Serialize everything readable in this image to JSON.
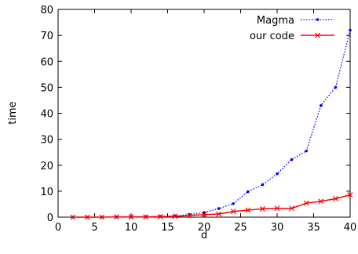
{
  "chart_data": {
    "type": "line",
    "xlabel": "d",
    "ylabel": "time",
    "xlim": [
      0,
      40
    ],
    "ylim": [
      0,
      80
    ],
    "xticks": [
      0,
      5,
      10,
      15,
      20,
      25,
      30,
      35,
      40
    ],
    "yticks": [
      0,
      10,
      20,
      30,
      40,
      50,
      60,
      70,
      80
    ],
    "grid": false,
    "legend_position": "top-right",
    "series": [
      {
        "name": "Magma",
        "color": "#0000ff",
        "line_style": "dotted",
        "marker": "dot",
        "x": [
          2,
          4,
          6,
          8,
          10,
          12,
          14,
          16,
          18,
          20,
          22,
          24,
          26,
          28,
          30,
          32,
          34,
          36,
          38,
          40
        ],
        "y": [
          0.0,
          0.0,
          0.0,
          0.1,
          0.1,
          0.2,
          0.3,
          0.5,
          1.0,
          1.8,
          3.3,
          5.2,
          9.8,
          12.5,
          16.7,
          22.2,
          25.5,
          43.0,
          50.0,
          72.0
        ]
      },
      {
        "name": "our code",
        "color": "#ff0000",
        "line_style": "solid",
        "marker": "x",
        "x": [
          2,
          4,
          6,
          8,
          10,
          12,
          14,
          16,
          18,
          20,
          22,
          24,
          26,
          28,
          30,
          32,
          34,
          36,
          38,
          40
        ],
        "y": [
          0.0,
          0.0,
          0.0,
          0.1,
          0.1,
          0.1,
          0.2,
          0.3,
          0.6,
          1.0,
          1.2,
          2.2,
          2.7,
          3.2,
          3.4,
          3.4,
          5.4,
          6.1,
          7.1,
          8.6
        ]
      }
    ]
  }
}
